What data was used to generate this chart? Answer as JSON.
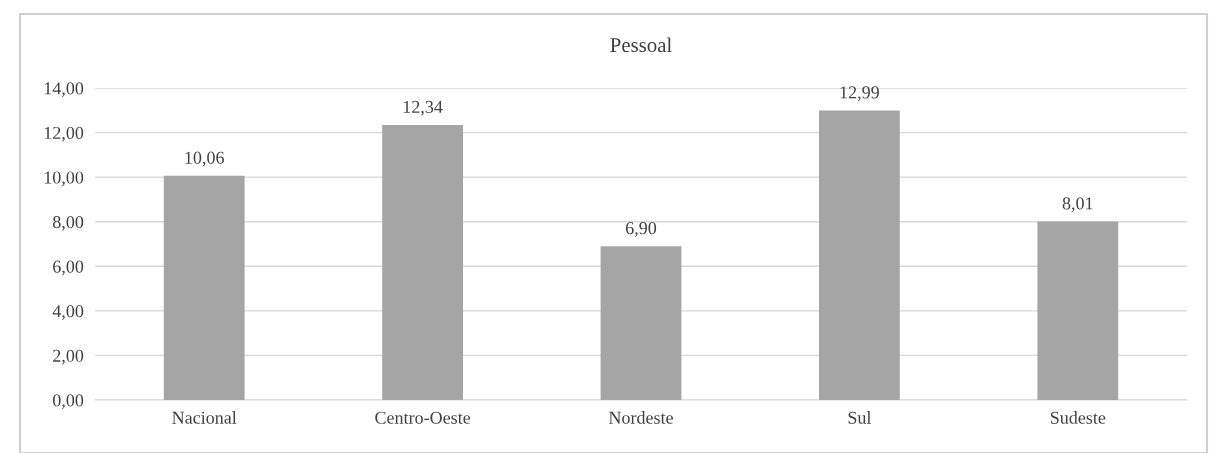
{
  "chart_data": {
    "type": "bar",
    "title": "Pessoal",
    "categories": [
      "Nacional",
      "Centro-Oeste",
      "Nordeste",
      "Sul",
      "Sudeste"
    ],
    "values": [
      10.06,
      12.34,
      6.9,
      12.99,
      8.01
    ],
    "color": "#a5a5a5",
    "value_labels": [
      "10,06",
      "12,34",
      "6,90",
      "12,99",
      "8,01"
    ],
    "ylim": [
      0,
      14
    ],
    "yticks": [
      {
        "value": 0,
        "label": "0,00"
      },
      {
        "value": 2,
        "label": "2,00"
      },
      {
        "value": 4,
        "label": "4,00"
      },
      {
        "value": 6,
        "label": "6,00"
      },
      {
        "value": 8,
        "label": "8,00"
      },
      {
        "value": 10,
        "label": "10,00"
      },
      {
        "value": 12,
        "label": "12,00"
      },
      {
        "value": 14,
        "label": "14,00"
      }
    ],
    "grid": "y"
  }
}
